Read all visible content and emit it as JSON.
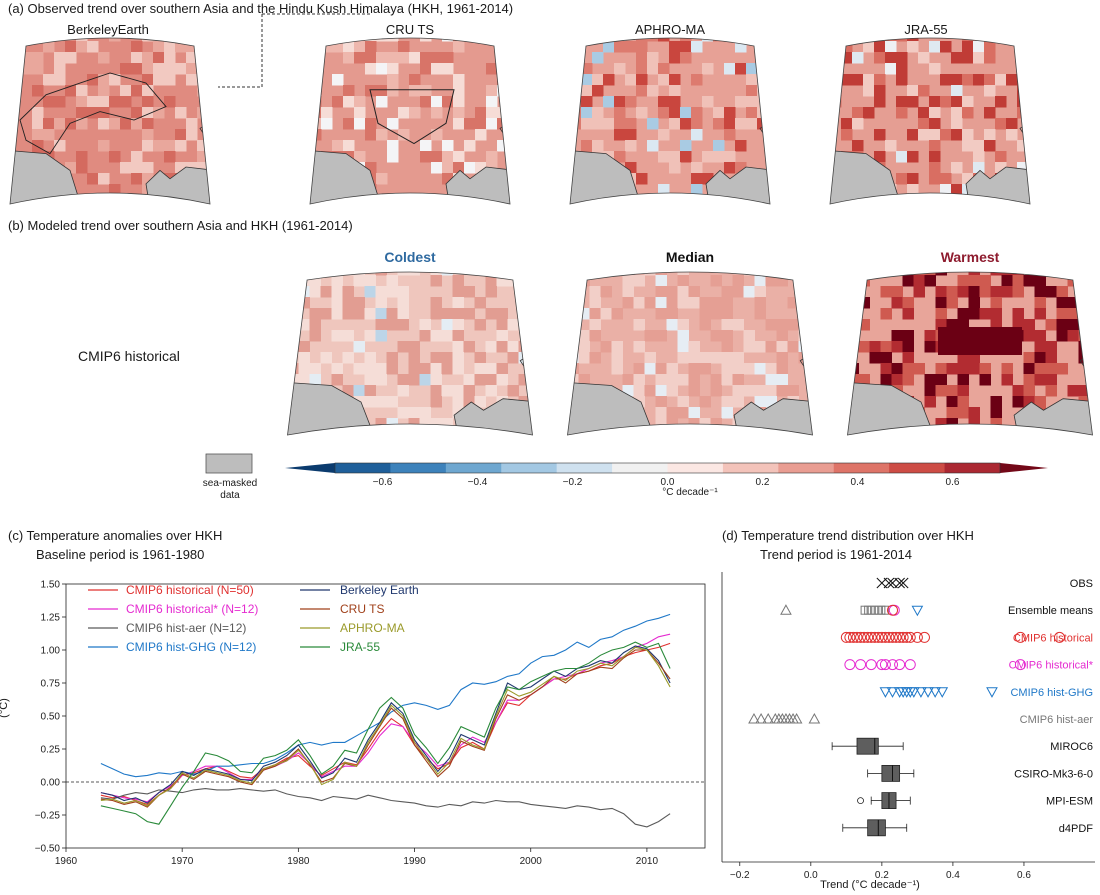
{
  "panel_a": {
    "title": "(a) Observed trend over southern Asia and the Hindu Kush Himalaya (HKH, 1961-2014)",
    "maps": [
      {
        "label": "BerkeleyEarth",
        "fill": "#e08b80",
        "warm": [
          "#d46a5f",
          "#e9a79c",
          "#f2c9c1"
        ],
        "cool": []
      },
      {
        "label": "CRU TS",
        "fill": "#e49a8f",
        "warm": [
          "#d87468",
          "#eeb7ad",
          "#f6dcd6"
        ],
        "cool": [
          "#f4f4f6"
        ]
      },
      {
        "label": "APHRO-MA",
        "fill": "#e7a196",
        "warm": [
          "#c9463e",
          "#dd7b6f",
          "#f0c1b8"
        ],
        "cool": [
          "#a9cbe3",
          "#dbe8f2"
        ]
      },
      {
        "label": "JRA-55",
        "fill": "#e59e93",
        "warm": [
          "#c03c36",
          "#d96e62",
          "#f2cbc3"
        ],
        "cool": [
          "#eef0f4",
          "#dfe9f1"
        ]
      }
    ]
  },
  "panel_b": {
    "title": "(b) Modeled trend over southern Asia and HKH (1961-2014)",
    "row_label": "CMIP6 historical",
    "columns": [
      {
        "label": "Coldest",
        "color": "#2f6aa0",
        "fill": "#efc6bd",
        "warm": [
          "#e29d92",
          "#f5ddd7"
        ],
        "cool": [
          "#bcd5e8",
          "#e4edf4"
        ]
      },
      {
        "label": "Median",
        "color": "#111111",
        "fill": "#eab0a6",
        "warm": [
          "#e59f94",
          "#f2cfc8"
        ],
        "cool": [
          "#e6edf4"
        ]
      },
      {
        "label": "Warmest",
        "color": "#8e1b2e",
        "fill": "#e8a59a",
        "warm": [
          "#b22c31",
          "#cf5a50",
          "#6b0014"
        ],
        "cool": []
      }
    ]
  },
  "legend": {
    "sea_mask_label": [
      "sea-masked",
      "data"
    ],
    "colorbar_ticks": [
      "−0.6",
      "−0.4",
      "−0.2",
      "0.0",
      "0.2",
      "0.4",
      "0.6"
    ],
    "colorbar_unit": "°C decade⁻¹",
    "colors": [
      "#0b3b6e",
      "#1f5f9a",
      "#3d82bb",
      "#6ea7d0",
      "#a3c8e3",
      "#cfe1ef",
      "#f1f1f1",
      "#fbe7e3",
      "#f3c3ba",
      "#e99d92",
      "#de7468",
      "#cd4c45",
      "#ab2832",
      "#730818"
    ]
  },
  "chart_data": [
    {
      "type": "line",
      "title": "(c) Temperature anomalies over HKH",
      "subtitle": "Baseline period is 1961-1980",
      "ylabel": "(°C)",
      "xlim": [
        1960,
        2015
      ],
      "ylim": [
        -0.5,
        1.5
      ],
      "xticks": [
        "1960",
        "1970",
        "1980",
        "1990",
        "2000",
        "2010"
      ],
      "yticks": [
        "−0.50",
        "−0.25",
        "0.00",
        "0.25",
        "0.50",
        "0.75",
        "1.00",
        "1.25",
        "1.50"
      ],
      "x": [
        1963,
        1964,
        1965,
        1966,
        1967,
        1968,
        1969,
        1970,
        1971,
        1972,
        1973,
        1974,
        1975,
        1976,
        1977,
        1978,
        1979,
        1980,
        1981,
        1982,
        1983,
        1984,
        1985,
        1986,
        1987,
        1988,
        1989,
        1990,
        1991,
        1992,
        1993,
        1994,
        1995,
        1996,
        1997,
        1998,
        1999,
        2000,
        2001,
        2002,
        2003,
        2004,
        2005,
        2006,
        2007,
        2008,
        2009,
        2010,
        2011,
        2012
      ],
      "series": [
        {
          "name": "CMIP6 historical (N=50)",
          "color": "#e0302f",
          "legend_col": 0,
          "values": [
            -0.1,
            -0.12,
            -0.11,
            -0.14,
            -0.17,
            -0.1,
            -0.05,
            0.05,
            0.07,
            0.1,
            0.12,
            0.08,
            0.04,
            0.03,
            0.1,
            0.13,
            0.18,
            0.2,
            0.12,
            0.05,
            0.1,
            0.15,
            0.13,
            0.25,
            0.38,
            0.48,
            0.42,
            0.28,
            0.18,
            0.1,
            0.14,
            0.26,
            0.3,
            0.25,
            0.45,
            0.6,
            0.58,
            0.66,
            0.72,
            0.78,
            0.78,
            0.82,
            0.84,
            0.88,
            0.9,
            0.95,
            0.98,
            1.0,
            1.02,
            1.05
          ]
        },
        {
          "name": "CMIP6 historical* (N=12)",
          "color": "#e52ad0",
          "legend_col": 0,
          "values": [
            -0.08,
            -0.1,
            -0.12,
            -0.13,
            -0.15,
            -0.08,
            -0.03,
            0.05,
            0.08,
            0.12,
            0.12,
            0.07,
            0.02,
            0.02,
            0.09,
            0.12,
            0.16,
            0.22,
            0.14,
            0.04,
            0.08,
            0.12,
            0.12,
            0.22,
            0.35,
            0.44,
            0.42,
            0.3,
            0.22,
            0.12,
            0.15,
            0.28,
            0.34,
            0.3,
            0.45,
            0.62,
            0.62,
            0.66,
            0.72,
            0.78,
            0.8,
            0.82,
            0.86,
            0.9,
            0.92,
            0.95,
            1.02,
            1.05,
            1.1,
            1.12
          ]
        },
        {
          "name": "CMIP6 hist-aer (N=12)",
          "color": "#5a5a5a",
          "legend_col": 0,
          "values": [
            -0.12,
            -0.13,
            -0.1,
            -0.08,
            -0.09,
            -0.06,
            -0.07,
            -0.08,
            -0.06,
            -0.05,
            -0.06,
            -0.06,
            -0.05,
            -0.06,
            -0.07,
            -0.06,
            -0.09,
            -0.11,
            -0.12,
            -0.14,
            -0.11,
            -0.12,
            -0.13,
            -0.1,
            -0.12,
            -0.14,
            -0.15,
            -0.16,
            -0.18,
            -0.19,
            -0.17,
            -0.18,
            -0.15,
            -0.16,
            -0.14,
            -0.15,
            -0.15,
            -0.17,
            -0.18,
            -0.19,
            -0.2,
            -0.18,
            -0.19,
            -0.21,
            -0.2,
            -0.24,
            -0.32,
            -0.34,
            -0.3,
            -0.24
          ]
        },
        {
          "name": "CMIP6 hist-GHG (N=12)",
          "color": "#1f78c8",
          "legend_col": 0,
          "values": [
            0.14,
            0.1,
            0.06,
            0.04,
            0.05,
            0.07,
            0.06,
            0.08,
            0.06,
            0.08,
            0.12,
            0.12,
            0.13,
            0.14,
            0.14,
            0.17,
            0.22,
            0.28,
            0.3,
            0.28,
            0.3,
            0.3,
            0.35,
            0.4,
            0.45,
            0.53,
            0.58,
            0.6,
            0.58,
            0.55,
            0.58,
            0.7,
            0.75,
            0.74,
            0.76,
            0.8,
            0.82,
            0.9,
            0.95,
            0.96,
            1.0,
            1.06,
            1.02,
            1.08,
            1.1,
            1.15,
            1.18,
            1.22,
            1.24,
            1.27
          ]
        },
        {
          "name": "Berkeley Earth",
          "color": "#20386e",
          "legend_col": 1,
          "values": [
            -0.08,
            -0.1,
            -0.14,
            -0.12,
            -0.16,
            -0.08,
            -0.02,
            0.08,
            0.05,
            0.1,
            0.08,
            0.06,
            0.02,
            0.01,
            0.12,
            0.15,
            0.2,
            0.28,
            0.16,
            0.03,
            0.07,
            0.18,
            0.15,
            0.32,
            0.45,
            0.6,
            0.52,
            0.32,
            0.2,
            0.08,
            0.18,
            0.36,
            0.32,
            0.28,
            0.52,
            0.75,
            0.7,
            0.72,
            0.78,
            0.84,
            0.8,
            0.86,
            0.88,
            0.92,
            0.9,
            0.98,
            1.03,
            1.01,
            0.92,
            0.75
          ]
        },
        {
          "name": "CRU TS",
          "color": "#a0401a",
          "legend_col": 1,
          "values": [
            -0.13,
            -0.14,
            -0.17,
            -0.15,
            -0.19,
            -0.1,
            -0.04,
            0.06,
            0.02,
            0.08,
            0.06,
            0.04,
            0.0,
            -0.02,
            0.09,
            0.12,
            0.17,
            0.25,
            0.13,
            0.0,
            0.03,
            0.14,
            0.12,
            0.28,
            0.42,
            0.56,
            0.48,
            0.28,
            0.16,
            0.04,
            0.12,
            0.31,
            0.27,
            0.24,
            0.48,
            0.66,
            0.62,
            0.66,
            0.72,
            0.8,
            0.75,
            0.82,
            0.84,
            0.87,
            0.86,
            0.94,
            1.0,
            1.0,
            0.9,
            0.78
          ]
        },
        {
          "name": "APHRO-MA",
          "color": "#9a9a2a",
          "legend_col": 1,
          "values": [
            -0.14,
            -0.13,
            -0.16,
            -0.14,
            -0.18,
            -0.1,
            -0.05,
            0.07,
            0.03,
            0.09,
            0.07,
            0.05,
            0.01,
            -0.01,
            0.1,
            0.13,
            0.16,
            0.24,
            0.14,
            -0.02,
            0.02,
            0.15,
            0.12,
            0.3,
            0.43,
            0.58,
            0.5,
            0.3,
            0.18,
            0.06,
            0.15,
            0.33,
            0.28,
            0.25,
            0.5,
            0.7,
            0.65,
            0.68,
            0.74,
            0.8,
            0.77,
            0.84,
            0.86,
            0.9,
            0.88,
            0.95,
            1.02,
            1.0,
            0.88,
            0.72
          ]
        },
        {
          "name": "JRA-55",
          "color": "#2a8a3a",
          "legend_col": 1,
          "values": [
            -0.18,
            -0.2,
            -0.22,
            -0.24,
            -0.3,
            -0.32,
            -0.18,
            -0.04,
            0.08,
            0.22,
            0.2,
            0.16,
            0.08,
            0.07,
            0.18,
            0.2,
            0.24,
            0.32,
            0.2,
            0.06,
            0.12,
            0.24,
            0.22,
            0.4,
            0.56,
            0.64,
            0.56,
            0.36,
            0.26,
            0.14,
            0.26,
            0.42,
            0.38,
            0.34,
            0.56,
            0.72,
            0.7,
            0.76,
            0.8,
            0.84,
            0.86,
            0.86,
            0.9,
            0.96,
            1.0,
            1.02,
            1.06,
            1.02,
            1.05,
            0.86
          ]
        }
      ]
    },
    {
      "type": "scatter",
      "title": "(d) Temperature trend distribution over HKH",
      "subtitle": "Trend period is 1961-2014",
      "xlabel": "Trend (°C decade⁻¹)",
      "xlim": [
        -0.25,
        0.8
      ],
      "xticks": [
        "−0.2",
        "0.0",
        "0.2",
        "0.4",
        "0.6"
      ],
      "rows": [
        {
          "label": "OBS",
          "color": "#111111",
          "marker": "x",
          "values": [
            0.2,
            0.22,
            0.23,
            0.25,
            0.26
          ]
        },
        {
          "label": "Ensemble means",
          "color": "#111111",
          "marker": "mixed",
          "points": [
            {
              "v": -0.07,
              "m": "triangle-up",
              "c": "#777777"
            },
            {
              "v": 0.15,
              "m": "square",
              "c": "#777777"
            },
            {
              "v": 0.16,
              "m": "square",
              "c": "#777777"
            },
            {
              "v": 0.17,
              "m": "square",
              "c": "#777777"
            },
            {
              "v": 0.18,
              "m": "square",
              "c": "#777777"
            },
            {
              "v": 0.19,
              "m": "square",
              "c": "#777777"
            },
            {
              "v": 0.2,
              "m": "square",
              "c": "#777777"
            },
            {
              "v": 0.21,
              "m": "square",
              "c": "#777777"
            },
            {
              "v": 0.235,
              "m": "circle",
              "c": "#e52ad0"
            },
            {
              "v": 0.23,
              "m": "circle",
              "c": "#e0302f"
            },
            {
              "v": 0.3,
              "m": "triangle-down",
              "c": "#1f78c8"
            }
          ]
        },
        {
          "label": "CMIP6 historical",
          "color": "#e0302f",
          "marker": "circle",
          "values": [
            0.1,
            0.11,
            0.12,
            0.13,
            0.14,
            0.15,
            0.16,
            0.17,
            0.18,
            0.19,
            0.2,
            0.21,
            0.22,
            0.23,
            0.24,
            0.25,
            0.26,
            0.27,
            0.28,
            0.3,
            0.32,
            0.59,
            0.7
          ]
        },
        {
          "label": "CMIP6 historical*",
          "color": "#e52ad0",
          "marker": "circle",
          "values": [
            0.11,
            0.14,
            0.17,
            0.2,
            0.21,
            0.23,
            0.25,
            0.28,
            0.59
          ]
        },
        {
          "label": "CMIP6 hist-GHG",
          "color": "#1f78c8",
          "marker": "triangle-down",
          "values": [
            0.21,
            0.23,
            0.25,
            0.26,
            0.27,
            0.28,
            0.29,
            0.31,
            0.33,
            0.35,
            0.37,
            0.51
          ]
        },
        {
          "label": "CMIP6 hist-aer",
          "color": "#777777",
          "marker": "triangle-up",
          "values": [
            -0.16,
            -0.14,
            -0.12,
            -0.1,
            -0.09,
            -0.08,
            -0.07,
            -0.06,
            -0.05,
            -0.04,
            0.01
          ]
        },
        {
          "label": "MIROC6",
          "color": "#111111",
          "marker": "box",
          "box": {
            "whisker_low": 0.06,
            "q1": 0.13,
            "median": 0.18,
            "q3": 0.19,
            "whisker_high": 0.26
          }
        },
        {
          "label": "CSIRO-Mk3-6-0",
          "color": "#111111",
          "marker": "box",
          "box": {
            "whisker_low": 0.16,
            "q1": 0.2,
            "median": 0.23,
            "q3": 0.25,
            "whisker_high": 0.29
          }
        },
        {
          "label": "MPI-ESM",
          "color": "#111111",
          "marker": "box",
          "box": {
            "whisker_low": 0.17,
            "q1": 0.2,
            "median": 0.22,
            "q3": 0.24,
            "whisker_high": 0.28
          },
          "outliers": [
            0.14
          ]
        },
        {
          "label": "d4PDF",
          "color": "#111111",
          "marker": "box",
          "box": {
            "whisker_low": 0.09,
            "q1": 0.16,
            "median": 0.19,
            "q3": 0.21,
            "whisker_high": 0.27
          }
        }
      ]
    }
  ]
}
